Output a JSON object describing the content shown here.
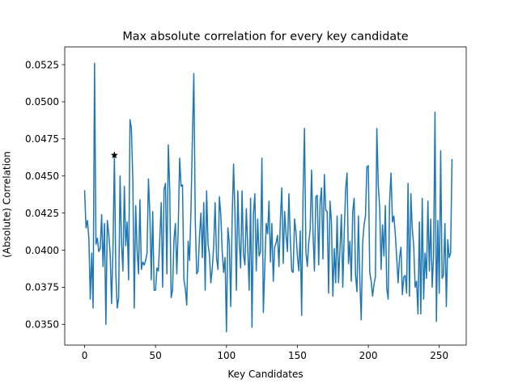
{
  "chart_data": {
    "type": "line",
    "title": "Max absolute correlation for every key candidate",
    "xlabel": "Key Candidates",
    "ylabel": "(Absolute) Correlation",
    "xlim": [
      -14,
      269
    ],
    "ylim": [
      0.0336,
      0.0537
    ],
    "xticks": [
      0,
      50,
      100,
      150,
      200,
      250
    ],
    "xtick_labels": [
      "0",
      "50",
      "100",
      "150",
      "200",
      "250"
    ],
    "yticks": [
      0.035,
      0.0375,
      0.04,
      0.0425,
      0.045,
      0.0475,
      0.05,
      0.0525
    ],
    "ytick_labels": [
      "0.0350",
      "0.0375",
      "0.0400",
      "0.0425",
      "0.0450",
      "0.0475",
      "0.0500",
      "0.0525"
    ],
    "grid": false,
    "line_color": "#1f77b4",
    "marker_color": "#000000",
    "series": [
      {
        "values": [
          0.044,
          0.0415,
          0.042,
          0.0408,
          0.0367,
          0.0398,
          0.0361,
          0.0526,
          0.0404,
          0.0408,
          0.0399,
          0.0401,
          0.0424,
          0.0389,
          0.0418,
          0.035,
          0.042,
          0.0411,
          0.0398,
          0.0364,
          0.0401,
          0.0464,
          0.0384,
          0.0361,
          0.0368,
          0.045,
          0.0405,
          0.0386,
          0.0443,
          0.0403,
          0.0419,
          0.038,
          0.0488,
          0.0482,
          0.0447,
          0.0361,
          0.043,
          0.04,
          0.0384,
          0.0434,
          0.0387,
          0.0392,
          0.039,
          0.0393,
          0.0398,
          0.0448,
          0.0424,
          0.038,
          0.0426,
          0.0373,
          0.0373,
          0.0388,
          0.0386,
          0.0407,
          0.0432,
          0.0375,
          0.0441,
          0.0445,
          0.0384,
          0.0471,
          0.0441,
          0.0368,
          0.0373,
          0.0407,
          0.0418,
          0.0384,
          0.0415,
          0.0462,
          0.0443,
          0.0444,
          0.038,
          0.0374,
          0.0363,
          0.0406,
          0.0393,
          0.0428,
          0.0476,
          0.0519,
          0.0421,
          0.0384,
          0.0386,
          0.041,
          0.0425,
          0.0395,
          0.0432,
          0.0373,
          0.044,
          0.0404,
          0.0397,
          0.0378,
          0.0388,
          0.0403,
          0.0432,
          0.0395,
          0.0387,
          0.0436,
          0.0424,
          0.0399,
          0.0385,
          0.0395,
          0.0345,
          0.0415,
          0.0405,
          0.0362,
          0.0421,
          0.0458,
          0.0424,
          0.0373,
          0.044,
          0.0406,
          0.0388,
          0.044,
          0.0397,
          0.039,
          0.0428,
          0.0402,
          0.0373,
          0.0435,
          0.0348,
          0.0424,
          0.0438,
          0.0386,
          0.0421,
          0.0396,
          0.0399,
          0.0462,
          0.0358,
          0.0388,
          0.0418,
          0.0411,
          0.0433,
          0.0392,
          0.0418,
          0.0379,
          0.0402,
          0.0405,
          0.041,
          0.0389,
          0.042,
          0.0442,
          0.0391,
          0.0426,
          0.0411,
          0.0399,
          0.0438,
          0.0408,
          0.0386,
          0.0385,
          0.0421,
          0.0412,
          0.0396,
          0.0386,
          0.0413,
          0.0356,
          0.0438,
          0.0482,
          0.0399,
          0.0389,
          0.0405,
          0.0414,
          0.0454,
          0.0412,
          0.0386,
          0.0436,
          0.0437,
          0.039,
          0.0432,
          0.0442,
          0.0394,
          0.0451,
          0.0427,
          0.0426,
          0.0371,
          0.0433,
          0.0419,
          0.0369,
          0.0401,
          0.0378,
          0.0423,
          0.0378,
          0.04,
          0.0424,
          0.0375,
          0.0411,
          0.0441,
          0.0452,
          0.0391,
          0.0406,
          0.0379,
          0.0426,
          0.0435,
          0.0383,
          0.0372,
          0.0423,
          0.038,
          0.0353,
          0.0405,
          0.0417,
          0.0423,
          0.0456,
          0.0457,
          0.0385,
          0.0379,
          0.0369,
          0.0377,
          0.0382,
          0.0482,
          0.0444,
          0.0429,
          0.0387,
          0.0417,
          0.0396,
          0.043,
          0.0374,
          0.0367,
          0.0433,
          0.0452,
          0.0419,
          0.0423,
          0.0411,
          0.0395,
          0.0378,
          0.0395,
          0.0402,
          0.037,
          0.0382,
          0.0383,
          0.0371,
          0.0445,
          0.0369,
          0.0438,
          0.0414,
          0.0403,
          0.0375,
          0.0379,
          0.0357,
          0.0419,
          0.0357,
          0.0435,
          0.0367,
          0.0398,
          0.0381,
          0.0433,
          0.0386,
          0.0421,
          0.0375,
          0.0396,
          0.0493,
          0.0352,
          0.042,
          0.0371,
          0.0467,
          0.0381,
          0.0383,
          0.0418,
          0.0362,
          0.0407,
          0.0395,
          0.0398,
          0.0461
        ]
      }
    ],
    "marker": {
      "x": 21,
      "y": 0.0464,
      "symbol": "star"
    }
  }
}
